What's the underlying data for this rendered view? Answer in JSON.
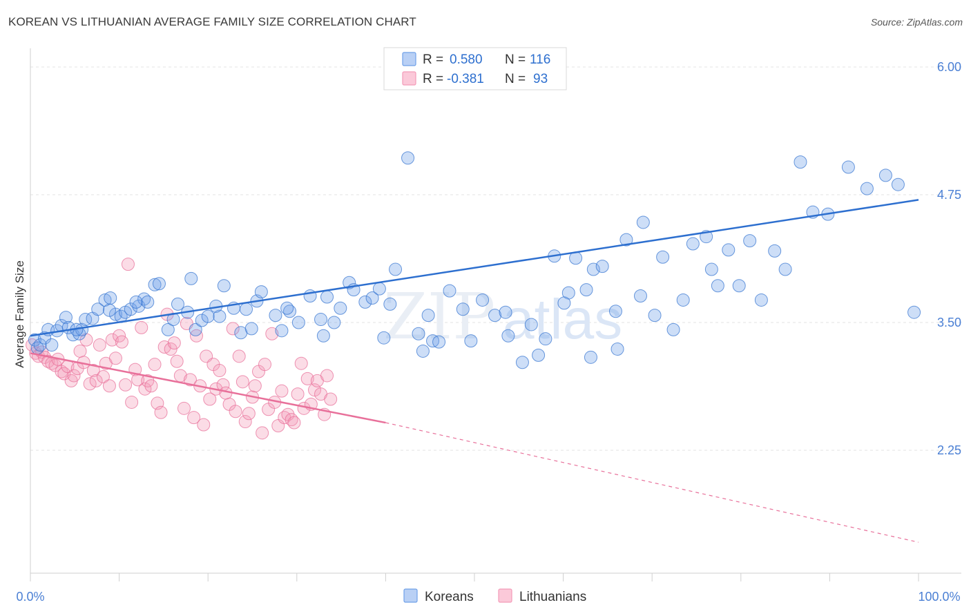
{
  "title": "KOREAN VS LITHUANIAN AVERAGE FAMILY SIZE CORRELATION CHART",
  "source": "Source: ZipAtlas.com",
  "watermark": "ZIPatlas",
  "colors": {
    "koreans": "#6fa0e8",
    "koreans_line": "#2d6fcf",
    "lithuanians": "#f49ab8",
    "lithuanians_line": "#e8709a",
    "tick_label": "#4a7fd4"
  },
  "legend_top": {
    "rows": [
      {
        "r_label": "R =",
        "r_value": "0.580",
        "n_label": "N =",
        "n_value": "116"
      },
      {
        "r_label": "R =",
        "r_value": "-0.381",
        "n_label": "N =",
        "n_value": "93"
      }
    ]
  },
  "chart_data": {
    "type": "scatter",
    "title": "KOREAN VS LITHUANIAN AVERAGE FAMILY SIZE CORRELATION CHART",
    "xlabel": "",
    "ylabel": "Average Family Size",
    "xlim": [
      0,
      100
    ],
    "ylim": [
      1.0,
      6.1
    ],
    "x_tick_labels": [
      "0.0%",
      "100.0%"
    ],
    "y_ticks": [
      2.25,
      3.5,
      4.75,
      6.0
    ],
    "y_tick_labels": [
      "2.25",
      "3.50",
      "4.75",
      "6.00"
    ],
    "grid": true,
    "legend_position": "bottom",
    "series": [
      {
        "name": "Koreans",
        "r": 0.58,
        "n": 116,
        "trend": {
          "x": [
            0,
            100
          ],
          "y": [
            3.37,
            4.7
          ]
        },
        "points": [
          [
            0.5,
            3.33
          ],
          [
            0.8,
            3.25
          ],
          [
            1.1,
            3.28
          ],
          [
            1.6,
            3.35
          ],
          [
            2.0,
            3.43
          ],
          [
            2.4,
            3.28
          ],
          [
            3.0,
            3.42
          ],
          [
            3.5,
            3.47
          ],
          [
            4.0,
            3.55
          ],
          [
            4.3,
            3.45
          ],
          [
            4.8,
            3.38
          ],
          [
            5.5,
            3.39
          ],
          [
            5.8,
            3.43
          ],
          [
            6.2,
            3.53
          ],
          [
            7.0,
            3.54
          ],
          [
            7.6,
            3.63
          ],
          [
            8.4,
            3.72
          ],
          [
            9.0,
            3.74
          ],
          [
            9.6,
            3.58
          ],
          [
            10.2,
            3.56
          ],
          [
            10.7,
            3.6
          ],
          [
            11.3,
            3.63
          ],
          [
            12.2,
            3.66
          ],
          [
            12.8,
            3.73
          ],
          [
            14.0,
            3.87
          ],
          [
            14.5,
            3.88
          ],
          [
            15.5,
            3.43
          ],
          [
            16.6,
            3.68
          ],
          [
            17.7,
            3.6
          ],
          [
            18.6,
            3.43
          ],
          [
            19.3,
            3.52
          ],
          [
            20.0,
            3.56
          ],
          [
            21.3,
            3.56
          ],
          [
            21.8,
            3.86
          ],
          [
            22.9,
            3.64
          ],
          [
            23.7,
            3.4
          ],
          [
            24.3,
            3.63
          ],
          [
            25.5,
            3.71
          ],
          [
            26.0,
            3.8
          ],
          [
            27.6,
            3.57
          ],
          [
            28.3,
            3.42
          ],
          [
            29.2,
            3.61
          ],
          [
            30.2,
            3.5
          ],
          [
            31.5,
            3.76
          ],
          [
            32.7,
            3.53
          ],
          [
            33.4,
            3.75
          ],
          [
            34.2,
            3.5
          ],
          [
            34.9,
            3.64
          ],
          [
            35.9,
            3.89
          ],
          [
            36.4,
            3.82
          ],
          [
            37.7,
            3.7
          ],
          [
            38.5,
            3.74
          ],
          [
            39.3,
            3.83
          ],
          [
            40.5,
            3.68
          ],
          [
            41.1,
            4.02
          ],
          [
            42.5,
            5.11
          ],
          [
            43.7,
            3.39
          ],
          [
            44.8,
            3.57
          ],
          [
            45.3,
            3.32
          ],
          [
            46.0,
            3.31
          ],
          [
            47.2,
            3.81
          ],
          [
            48.7,
            3.63
          ],
          [
            49.6,
            3.32
          ],
          [
            50.9,
            3.72
          ],
          [
            52.3,
            3.57
          ],
          [
            53.5,
            3.6
          ],
          [
            55.4,
            3.11
          ],
          [
            56.4,
            3.48
          ],
          [
            58.0,
            3.34
          ],
          [
            59.0,
            4.15
          ],
          [
            60.6,
            3.79
          ],
          [
            61.4,
            4.13
          ],
          [
            62.6,
            3.82
          ],
          [
            63.4,
            4.02
          ],
          [
            64.4,
            4.05
          ],
          [
            65.9,
            3.61
          ],
          [
            67.1,
            4.31
          ],
          [
            68.7,
            3.76
          ],
          [
            70.3,
            3.57
          ],
          [
            71.2,
            4.14
          ],
          [
            73.5,
            3.72
          ],
          [
            74.6,
            4.27
          ],
          [
            76.1,
            4.34
          ],
          [
            77.4,
            3.86
          ],
          [
            78.6,
            4.21
          ],
          [
            79.8,
            3.86
          ],
          [
            81.0,
            4.3
          ],
          [
            82.3,
            3.72
          ],
          [
            83.8,
            4.2
          ],
          [
            85.0,
            4.02
          ],
          [
            86.7,
            5.07
          ],
          [
            88.1,
            4.58
          ],
          [
            89.8,
            4.56
          ],
          [
            92.1,
            5.02
          ],
          [
            94.2,
            4.81
          ],
          [
            96.3,
            4.94
          ],
          [
            97.7,
            4.85
          ],
          [
            99.5,
            3.6
          ],
          [
            13.2,
            3.7
          ],
          [
            18.1,
            3.93
          ],
          [
            39.8,
            3.35
          ],
          [
            44.2,
            3.22
          ],
          [
            53.8,
            3.37
          ],
          [
            57.2,
            3.18
          ],
          [
            60.1,
            3.69
          ],
          [
            63.1,
            3.16
          ],
          [
            66.1,
            3.24
          ],
          [
            69.0,
            4.48
          ],
          [
            72.4,
            3.43
          ],
          [
            76.7,
            4.02
          ],
          [
            33.0,
            3.37
          ],
          [
            28.9,
            3.64
          ],
          [
            24.9,
            3.44
          ],
          [
            20.9,
            3.66
          ],
          [
            16.1,
            3.53
          ],
          [
            11.9,
            3.7
          ],
          [
            8.9,
            3.62
          ],
          [
            5.2,
            3.43
          ]
        ]
      },
      {
        "name": "Lithuanians",
        "r": -0.381,
        "n": 93,
        "trend": {
          "x": [
            0,
            40
          ],
          "y": [
            3.2,
            2.52
          ]
        },
        "trend_dashed": {
          "x": [
            40,
            100
          ],
          "y": [
            2.52,
            1.35
          ]
        },
        "points": [
          [
            0.2,
            3.28
          ],
          [
            0.6,
            3.2
          ],
          [
            0.9,
            3.17
          ],
          [
            1.3,
            3.21
          ],
          [
            1.6,
            3.16
          ],
          [
            2.0,
            3.12
          ],
          [
            2.4,
            3.1
          ],
          [
            2.8,
            3.08
          ],
          [
            3.1,
            3.14
          ],
          [
            3.5,
            3.02
          ],
          [
            3.8,
            3.0
          ],
          [
            4.2,
            3.07
          ],
          [
            4.6,
            2.93
          ],
          [
            4.9,
            2.98
          ],
          [
            5.3,
            3.05
          ],
          [
            5.6,
            3.22
          ],
          [
            6.0,
            3.11
          ],
          [
            6.3,
            3.33
          ],
          [
            6.7,
            2.9
          ],
          [
            7.1,
            3.03
          ],
          [
            7.4,
            2.93
          ],
          [
            7.8,
            3.28
          ],
          [
            8.2,
            2.97
          ],
          [
            8.5,
            3.1
          ],
          [
            8.9,
            2.88
          ],
          [
            9.2,
            3.33
          ],
          [
            9.6,
            3.15
          ],
          [
            10.0,
            3.37
          ],
          [
            10.3,
            3.31
          ],
          [
            10.7,
            2.89
          ],
          [
            11.0,
            4.07
          ],
          [
            11.4,
            2.72
          ],
          [
            11.8,
            3.04
          ],
          [
            12.1,
            2.94
          ],
          [
            12.5,
            3.45
          ],
          [
            12.9,
            2.85
          ],
          [
            13.2,
            2.93
          ],
          [
            13.6,
            2.88
          ],
          [
            14.0,
            3.09
          ],
          [
            14.3,
            2.71
          ],
          [
            14.7,
            2.62
          ],
          [
            15.1,
            3.26
          ],
          [
            15.4,
            3.58
          ],
          [
            15.8,
            3.24
          ],
          [
            16.2,
            3.3
          ],
          [
            16.5,
            3.12
          ],
          [
            16.9,
            2.98
          ],
          [
            17.3,
            2.66
          ],
          [
            17.6,
            3.49
          ],
          [
            18.0,
            2.94
          ],
          [
            18.4,
            2.57
          ],
          [
            18.7,
            3.37
          ],
          [
            19.1,
            2.88
          ],
          [
            19.5,
            2.5
          ],
          [
            19.8,
            3.17
          ],
          [
            20.2,
            2.75
          ],
          [
            20.6,
            3.09
          ],
          [
            20.9,
            2.85
          ],
          [
            21.3,
            3.03
          ],
          [
            21.7,
            2.89
          ],
          [
            22.0,
            2.81
          ],
          [
            22.4,
            2.7
          ],
          [
            22.8,
            3.44
          ],
          [
            23.1,
            2.63
          ],
          [
            23.5,
            3.17
          ],
          [
            23.9,
            2.92
          ],
          [
            24.2,
            2.53
          ],
          [
            24.6,
            2.61
          ],
          [
            25.0,
            2.77
          ],
          [
            25.3,
            2.88
          ],
          [
            25.7,
            3.02
          ],
          [
            26.1,
            2.42
          ],
          [
            26.4,
            3.09
          ],
          [
            26.8,
            2.65
          ],
          [
            27.2,
            3.39
          ],
          [
            27.5,
            2.72
          ],
          [
            27.9,
            2.49
          ],
          [
            28.3,
            2.83
          ],
          [
            28.6,
            2.57
          ],
          [
            29.0,
            2.6
          ],
          [
            29.4,
            2.55
          ],
          [
            29.7,
            2.52
          ],
          [
            30.1,
            2.8
          ],
          [
            30.5,
            3.1
          ],
          [
            30.8,
            2.66
          ],
          [
            31.2,
            2.95
          ],
          [
            31.6,
            2.7
          ],
          [
            32.0,
            2.84
          ],
          [
            32.3,
            2.93
          ],
          [
            32.7,
            2.8
          ],
          [
            33.1,
            2.6
          ],
          [
            33.4,
            2.98
          ],
          [
            33.8,
            2.75
          ]
        ]
      }
    ]
  },
  "bottom_legend": {
    "items": [
      {
        "label": "Koreans"
      },
      {
        "label": "Lithuanians"
      }
    ]
  }
}
